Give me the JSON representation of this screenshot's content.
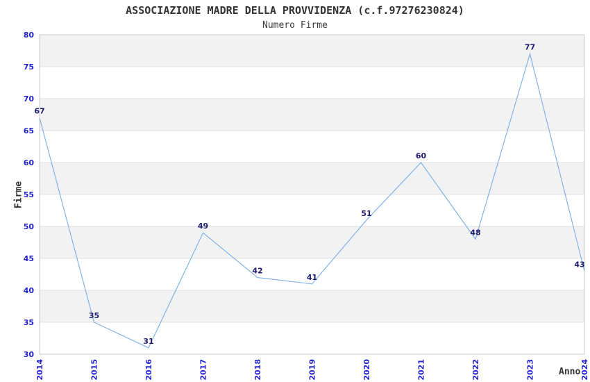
{
  "chart_data": {
    "type": "line",
    "title": "ASSOCIAZIONE MADRE DELLA PROVVIDENZA (c.f.97276230824)",
    "subtitle": "Numero Firme",
    "xlabel": "Anno",
    "ylabel": "Firme",
    "x": [
      2014,
      2015,
      2016,
      2017,
      2018,
      2019,
      2020,
      2021,
      2022,
      2023,
      2024
    ],
    "values": [
      67,
      35,
      31,
      49,
      42,
      41,
      51,
      60,
      48,
      77,
      43
    ],
    "ylim": [
      30,
      80
    ],
    "ytick_step": 5,
    "yticks": [
      30,
      35,
      40,
      45,
      50,
      55,
      60,
      65,
      70,
      75,
      80
    ],
    "grid": true,
    "background_bands": "alternating gray/white horizontal bands, gray topmost",
    "legend": "none",
    "colors": {
      "line": "#80b3e6",
      "tick_labels": "#2323cd",
      "data_labels": "#1c1c70",
      "band_gray": "#f2f2f2",
      "gridline": "#e0e0e0",
      "plot_border": "#c8c8c8",
      "title_text": "#333333",
      "background": "#ffffff"
    }
  }
}
